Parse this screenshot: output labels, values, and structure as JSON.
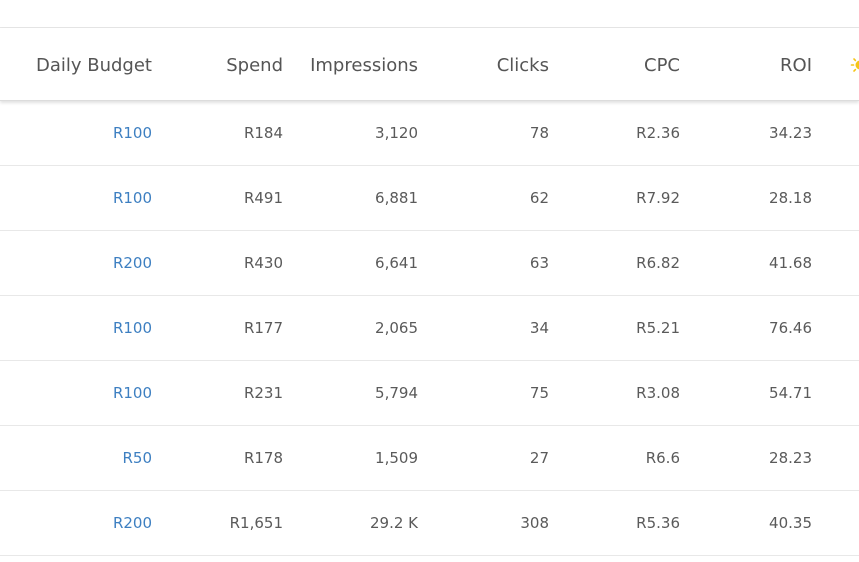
{
  "table": {
    "columns": [
      {
        "key": "budget",
        "label": "Daily Budget"
      },
      {
        "key": "spend",
        "label": "Spend"
      },
      {
        "key": "impressions",
        "label": "Impressions"
      },
      {
        "key": "clicks",
        "label": "Clicks"
      },
      {
        "key": "cpc",
        "label": "CPC"
      },
      {
        "key": "roi",
        "label": "ROI"
      }
    ],
    "rows": [
      {
        "budget": "R100",
        "spend": "R184",
        "impressions": "3,120",
        "clicks": "78",
        "cpc": "R2.36",
        "roi": "34.23"
      },
      {
        "budget": "R100",
        "spend": "R491",
        "impressions": "6,881",
        "clicks": "62",
        "cpc": "R7.92",
        "roi": "28.18"
      },
      {
        "budget": "R200",
        "spend": "R430",
        "impressions": "6,641",
        "clicks": "63",
        "cpc": "R6.82",
        "roi": "41.68"
      },
      {
        "budget": "R100",
        "spend": "R177",
        "impressions": "2,065",
        "clicks": "34",
        "cpc": "R5.21",
        "roi": "76.46"
      },
      {
        "budget": "R100",
        "spend": "R231",
        "impressions": "5,794",
        "clicks": "75",
        "cpc": "R3.08",
        "roi": "54.71"
      },
      {
        "budget": "R50",
        "spend": "R178",
        "impressions": "1,509",
        "clicks": "27",
        "cpc": "R6.6",
        "roi": "28.23"
      },
      {
        "budget": "R200",
        "spend": "R1,651",
        "impressions": "29.2 K",
        "clicks": "308",
        "cpc": "R5.36",
        "roi": "40.35"
      }
    ]
  },
  "icons": {
    "header_extra": "sun-icon"
  },
  "colors": {
    "link": "#3d7fc1",
    "text": "#5a5a5a",
    "header_text": "#555555",
    "sun": "#f5c518"
  }
}
